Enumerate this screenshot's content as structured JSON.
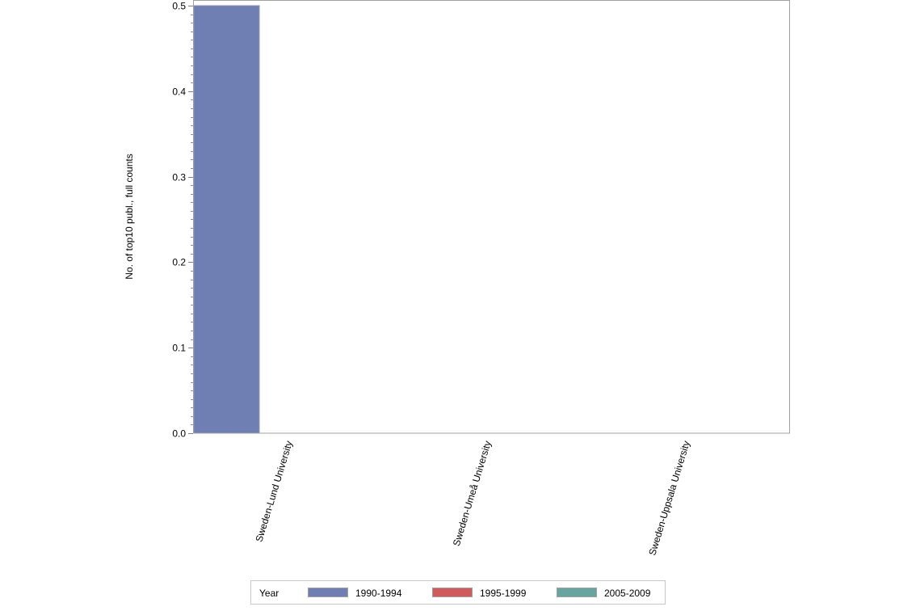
{
  "chart_data": {
    "type": "bar",
    "title": "",
    "xlabel": "",
    "ylabel": "No. of top10 publ., full counts",
    "ylim": [
      0,
      0.5
    ],
    "yticks": [
      "0.0",
      "0.1",
      "0.2",
      "0.3",
      "0.4",
      "0.5"
    ],
    "minor_tick_step": 0.01,
    "grid": false,
    "categories": [
      "Sweden-Lund University",
      "Sweden-Umeå University",
      "Sweden-Uppsala University"
    ],
    "series": [
      {
        "name": "1990-1994",
        "color": "#6f7eb3",
        "values": [
          0.5,
          null,
          null
        ]
      },
      {
        "name": "1995-1999",
        "color": "#d05b5b",
        "values": [
          null,
          null,
          null
        ]
      },
      {
        "name": "2005-2009",
        "color": "#66a5a0",
        "values": [
          null,
          null,
          null
        ]
      }
    ],
    "legend": {
      "title": "Year",
      "placement": "bottom"
    }
  }
}
